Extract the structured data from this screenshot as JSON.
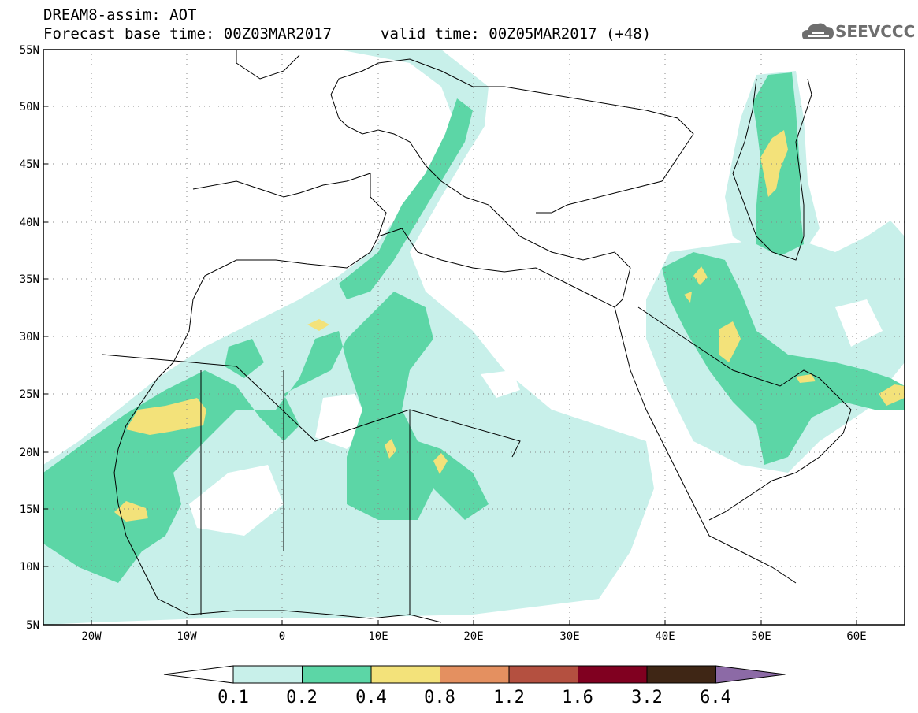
{
  "header": {
    "title_line1": "DREAM8-assim: AOT",
    "base_time": "Forecast base time: 00Z03MAR2017",
    "valid_time": "valid time: 00Z05MAR2017 (+48)",
    "logo_text": "SEEVCCC"
  },
  "map": {
    "lon_range": [
      -25,
      65
    ],
    "lat_range": [
      5,
      55
    ],
    "lat_ticks": [
      "55N",
      "50N",
      "45N",
      "40N",
      "35N",
      "30N",
      "25N",
      "20N",
      "15N",
      "10N",
      "5N"
    ],
    "lon_ticks": [
      "20W",
      "10W",
      "0",
      "10E",
      "20E",
      "30E",
      "40E",
      "50E",
      "60E"
    ]
  },
  "colorbar": {
    "levels": [
      "0.1",
      "0.2",
      "0.4",
      "0.8",
      "1.2",
      "1.6",
      "3.2",
      "6.4"
    ],
    "colors": [
      "#ffffff",
      "#c8f0ea",
      "#5cd6a6",
      "#f3e27a",
      "#e49060",
      "#b45040",
      "#800020",
      "#3f2615",
      "#8c6aa6"
    ]
  }
}
